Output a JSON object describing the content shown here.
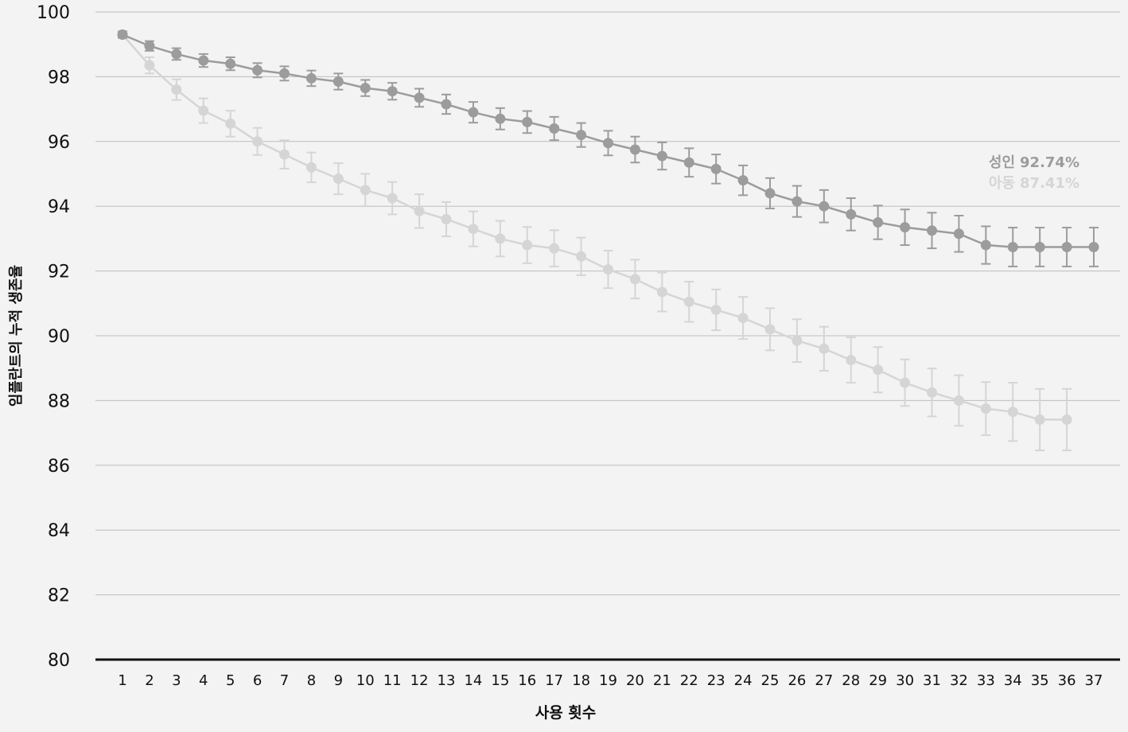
{
  "chart_data": {
    "type": "line",
    "x_label": "사용 횟수",
    "y_label": "임플란트의 누적 생존율",
    "categories": [
      1,
      2,
      3,
      4,
      5,
      6,
      7,
      8,
      9,
      10,
      11,
      12,
      13,
      14,
      15,
      16,
      17,
      18,
      19,
      20,
      21,
      22,
      23,
      24,
      25,
      26,
      27,
      28,
      29,
      30,
      31,
      32,
      33,
      34,
      35,
      36,
      37
    ],
    "ylim": [
      80,
      100
    ],
    "yticks": [
      80,
      82,
      84,
      86,
      88,
      90,
      92,
      94,
      96,
      98,
      100
    ],
    "grid": true,
    "series": [
      {
        "name": "아동",
        "color": "#d5d5d5",
        "end_label": "87.41%",
        "values": [
          99.3,
          98.35,
          97.6,
          96.95,
          96.55,
          96.0,
          95.6,
          95.2,
          94.85,
          94.5,
          94.25,
          93.85,
          93.6,
          93.3,
          93.0,
          92.8,
          92.7,
          92.45,
          92.05,
          91.75,
          91.35,
          91.05,
          90.8,
          90.55,
          90.2,
          89.85,
          89.6,
          89.25,
          88.95,
          88.55,
          88.25,
          88.0,
          87.75,
          87.65,
          87.41,
          87.41,
          null
        ],
        "errors": [
          0.1,
          0.25,
          0.32,
          0.38,
          0.4,
          0.42,
          0.44,
          0.46,
          0.48,
          0.5,
          0.5,
          0.52,
          0.53,
          0.54,
          0.55,
          0.56,
          0.56,
          0.58,
          0.58,
          0.6,
          0.6,
          0.62,
          0.63,
          0.65,
          0.65,
          0.66,
          0.68,
          0.7,
          0.7,
          0.72,
          0.74,
          0.78,
          0.82,
          0.9,
          0.95,
          0.95,
          null
        ]
      },
      {
        "name": "성인",
        "color": "#9c9c9c",
        "end_label": "92.74%",
        "values": [
          99.3,
          98.95,
          98.7,
          98.5,
          98.4,
          98.2,
          98.1,
          97.95,
          97.85,
          97.65,
          97.55,
          97.35,
          97.15,
          96.9,
          96.7,
          96.6,
          96.4,
          96.2,
          95.95,
          95.75,
          95.55,
          95.35,
          95.15,
          94.8,
          94.4,
          94.15,
          94.0,
          93.75,
          93.5,
          93.35,
          93.25,
          93.15,
          92.8,
          92.74,
          92.74,
          92.74,
          92.74
        ],
        "errors": [
          0.1,
          0.15,
          0.18,
          0.2,
          0.2,
          0.22,
          0.22,
          0.24,
          0.25,
          0.25,
          0.26,
          0.28,
          0.3,
          0.32,
          0.33,
          0.34,
          0.36,
          0.37,
          0.38,
          0.4,
          0.42,
          0.44,
          0.45,
          0.46,
          0.47,
          0.48,
          0.5,
          0.5,
          0.52,
          0.55,
          0.55,
          0.56,
          0.58,
          0.6,
          0.6,
          0.6,
          0.6
        ]
      }
    ]
  }
}
